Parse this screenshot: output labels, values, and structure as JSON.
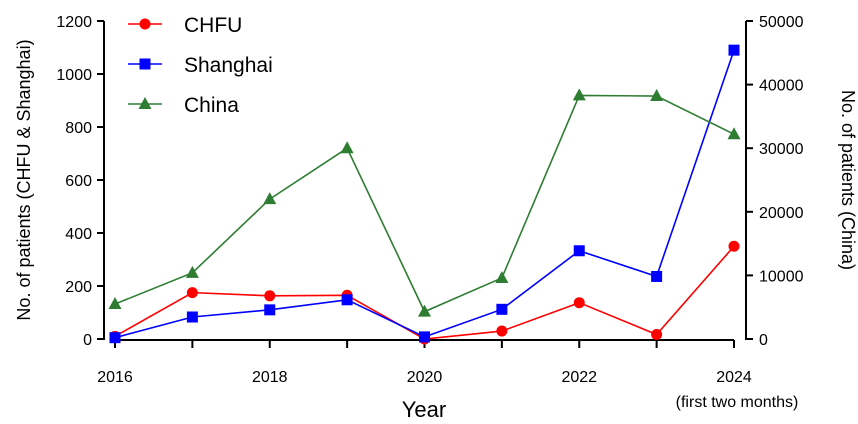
{
  "chart_data": {
    "type": "line",
    "x": [
      2016,
      2017,
      2018,
      2019,
      2020,
      2021,
      2022,
      2023,
      2024
    ],
    "x_ticks": [
      2016,
      2018,
      2020,
      2022,
      2024
    ],
    "x_tick_labels": [
      "2016",
      "2018",
      "2020",
      "2022",
      "2024"
    ],
    "x_tick_sublabel": "(first two months)",
    "xlabel": "Year",
    "ylabel_left": "No. of patients (CHFU & Shanghai)",
    "ylabel_right": "No. of patients (China)",
    "ylim_left": [
      0,
      1200
    ],
    "yticks_left": [
      0,
      200,
      400,
      600,
      800,
      1000,
      1200
    ],
    "ylim_right": [
      0,
      50000
    ],
    "yticks_right": [
      0,
      10000,
      20000,
      30000,
      40000,
      50000
    ],
    "grid": false,
    "legend_position": "top-left",
    "series": [
      {
        "name": "CHFU",
        "axis": "left",
        "marker": "circle",
        "color": "#ff0000",
        "values": [
          10,
          175,
          163,
          165,
          0,
          30,
          137,
          17,
          350
        ]
      },
      {
        "name": "Shanghai",
        "axis": "left",
        "marker": "square",
        "color": "#0000ff",
        "values": [
          5,
          83,
          110,
          148,
          8,
          112,
          333,
          236,
          1090
        ]
      },
      {
        "name": "China",
        "axis": "right",
        "marker": "triangle",
        "color": "#2e7d32",
        "values": [
          5500,
          10400,
          22000,
          30000,
          4300,
          9600,
          38300,
          38200,
          32200
        ]
      }
    ]
  }
}
